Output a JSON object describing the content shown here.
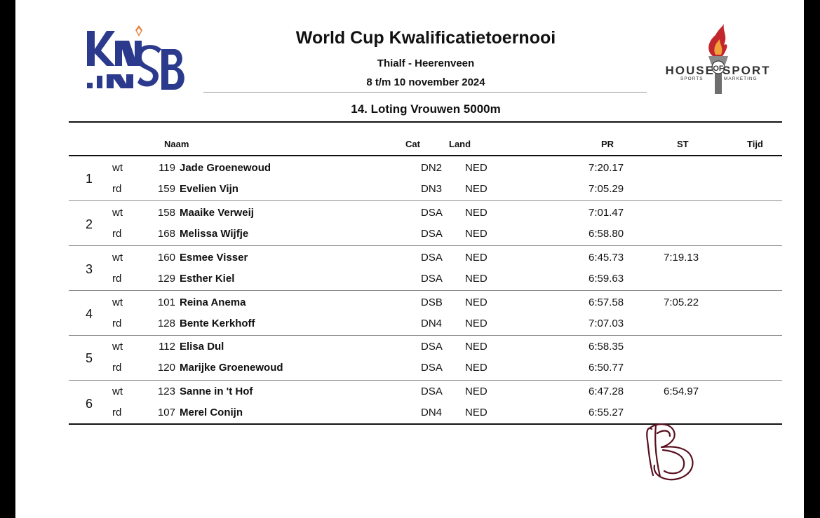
{
  "header": {
    "title": "World Cup Kwalificatietoernooi",
    "venue": "Thialf - Heerenveen",
    "dates": "8 t/m 10 november 2024",
    "subtitle": "14. Loting Vrouwen 5000m"
  },
  "logos": {
    "left": {
      "text": "KNSB",
      "color": "#2b3a8c",
      "accent": "#e5823a"
    },
    "right": {
      "name": "HOUSE OF SPORTS",
      "tagline": "SPORTS MARKETING",
      "accent": "#c2272d"
    }
  },
  "columns": {
    "naam": "Naam",
    "cat": "Cat",
    "land": "Land",
    "pr": "PR",
    "st": "ST",
    "tijd": "Tijd"
  },
  "pairs": [
    {
      "no": "1",
      "skaters": [
        {
          "lane": "wt",
          "num": "119",
          "name": "Jade Groenewoud",
          "cat": "DN2",
          "land": "NED",
          "pr": "7:20.17",
          "st": ""
        },
        {
          "lane": "rd",
          "num": "159",
          "name": "Evelien Vijn",
          "cat": "DN3",
          "land": "NED",
          "pr": "7:05.29",
          "st": ""
        }
      ]
    },
    {
      "no": "2",
      "skaters": [
        {
          "lane": "wt",
          "num": "158",
          "name": "Maaike Verweij",
          "cat": "DSA",
          "land": "NED",
          "pr": "7:01.47",
          "st": ""
        },
        {
          "lane": "rd",
          "num": "168",
          "name": "Melissa Wijfje",
          "cat": "DSA",
          "land": "NED",
          "pr": "6:58.80",
          "st": ""
        }
      ]
    },
    {
      "no": "3",
      "skaters": [
        {
          "lane": "wt",
          "num": "160",
          "name": "Esmee Visser",
          "cat": "DSA",
          "land": "NED",
          "pr": "6:45.73",
          "st": "7:19.13"
        },
        {
          "lane": "rd",
          "num": "129",
          "name": "Esther Kiel",
          "cat": "DSA",
          "land": "NED",
          "pr": "6:59.63",
          "st": ""
        }
      ]
    },
    {
      "no": "4",
      "skaters": [
        {
          "lane": "wt",
          "num": "101",
          "name": "Reina Anema",
          "cat": "DSB",
          "land": "NED",
          "pr": "6:57.58",
          "st": "7:05.22"
        },
        {
          "lane": "rd",
          "num": "128",
          "name": "Bente Kerkhoff",
          "cat": "DN4",
          "land": "NED",
          "pr": "7:07.03",
          "st": ""
        }
      ]
    },
    {
      "no": "5",
      "skaters": [
        {
          "lane": "wt",
          "num": "112",
          "name": "Elisa Dul",
          "cat": "DSA",
          "land": "NED",
          "pr": "6:58.35",
          "st": ""
        },
        {
          "lane": "rd",
          "num": "120",
          "name": "Marijke Groenewoud",
          "cat": "DSA",
          "land": "NED",
          "pr": "6:50.77",
          "st": ""
        }
      ]
    },
    {
      "no": "6",
      "skaters": [
        {
          "lane": "wt",
          "num": "123",
          "name": "Sanne in 't Hof",
          "cat": "DSA",
          "land": "NED",
          "pr": "6:47.28",
          "st": "6:54.97"
        },
        {
          "lane": "rd",
          "num": "107",
          "name": "Merel Conijn",
          "cat": "DN4",
          "land": "NED",
          "pr": "6:55.27",
          "st": ""
        }
      ]
    }
  ],
  "signature": {
    "color": "#5a1020"
  }
}
